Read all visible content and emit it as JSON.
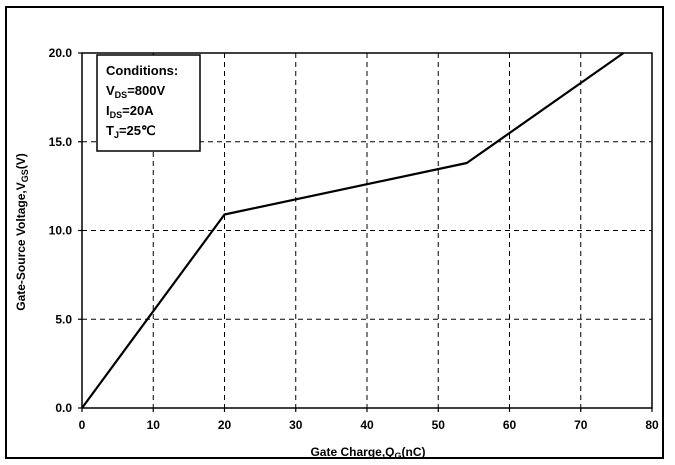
{
  "chart_data": {
    "type": "line",
    "xlabel": {
      "main": "Gate Charge,Q",
      "sub": "G",
      "unit": "(nC)"
    },
    "ylabel": {
      "main": "Gate-Source Voltage,V",
      "sub": "GS",
      "unit": "(V)"
    },
    "xlim": [
      0,
      80
    ],
    "ylim": [
      0,
      20
    ],
    "x_ticks": [
      "0",
      "10",
      "20",
      "30",
      "40",
      "50",
      "60",
      "70",
      "80"
    ],
    "y_ticks": [
      "0.0",
      "5.0",
      "10.0",
      "15.0",
      "20.0"
    ],
    "grid": true,
    "series": [
      {
        "x": [
          0,
          20,
          54,
          76
        ],
        "y": [
          0,
          10.9,
          13.8,
          20.0
        ]
      }
    ],
    "conditions": {
      "title": "Conditions:",
      "lines": [
        {
          "prefix": "V",
          "sub": "DS",
          "value": "=800V"
        },
        {
          "prefix": "I",
          "sub": "DS",
          "value": "=20A"
        },
        {
          "prefix": "T",
          "sub": "J",
          "value": "=25℃"
        }
      ]
    }
  }
}
